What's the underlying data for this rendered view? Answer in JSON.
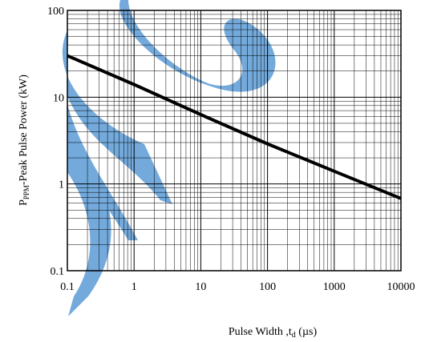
{
  "chart_data": {
    "type": "line",
    "x_scale": "log",
    "y_scale": "log",
    "xlim": [
      0.1,
      10000
    ],
    "ylim": [
      0.1,
      100
    ],
    "x_ticks": [
      0.1,
      1,
      10,
      100,
      1000,
      10000
    ],
    "x_tick_labels": [
      "0.1",
      "1",
      "10",
      "100",
      "1000",
      "10000"
    ],
    "y_ticks": [
      0.1,
      1,
      10,
      100
    ],
    "y_tick_labels": [
      "0.1",
      "1",
      "10",
      "100"
    ],
    "grid": true,
    "series": [
      {
        "x": [
          0.1,
          1,
          10,
          100,
          1000,
          10000
        ],
        "y": [
          30,
          14,
          6.3,
          2.9,
          1.4,
          0.68
        ],
        "color": "#000000"
      }
    ],
    "xlabel_parts": [
      "Pulse Width ,t",
      "d",
      " (µs)"
    ],
    "ylabel_parts": [
      "P",
      "PPM",
      "-Peak Pulse Power (kW)"
    ],
    "watermark_color": "#5b9bd5"
  }
}
